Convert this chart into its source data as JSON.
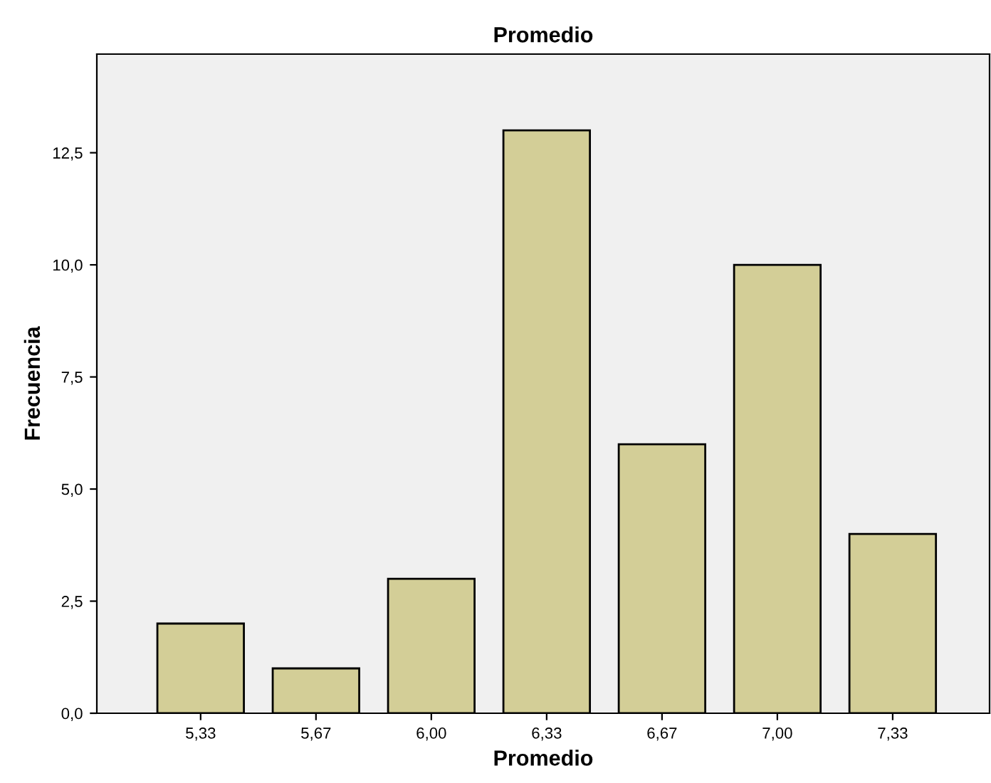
{
  "chart_data": {
    "type": "bar",
    "title": "Promedio",
    "xlabel": "Promedio",
    "ylabel": "Frecuencia",
    "categories": [
      "5,33",
      "5,67",
      "6,00",
      "6,33",
      "6,67",
      "7,00",
      "7,33"
    ],
    "values": [
      2,
      1,
      3,
      13,
      6,
      10,
      4
    ],
    "color": "#d3ce97",
    "ylim": [
      0,
      14.7
    ],
    "yticks": [
      {
        "value": 0,
        "label": "0,0"
      },
      {
        "value": 2.5,
        "label": "2,5"
      },
      {
        "value": 5,
        "label": "5,0"
      },
      {
        "value": 7.5,
        "label": "7,5"
      },
      {
        "value": 10,
        "label": "10,0"
      },
      {
        "value": 12.5,
        "label": "12,5"
      }
    ],
    "grid": false
  }
}
